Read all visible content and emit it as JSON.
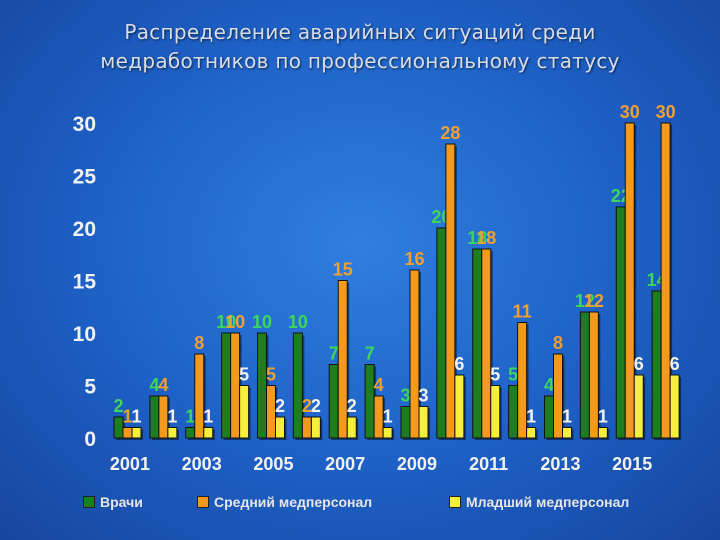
{
  "title_lines": [
    "Распределение аварийных ситуаций среди",
    "медработников по профессиональному статусу"
  ],
  "colors": {
    "background": "#1f63c6",
    "doctors": "#1e7d1e",
    "nurses": "#f39a1c",
    "juniors": "#f5ee3a",
    "label_doctors": "#3dd65a",
    "label_nurses": "#f0a030",
    "label_juniors": "#f2f2f2"
  },
  "chart_data": {
    "type": "bar",
    "title": "Распределение аварийных ситуаций среди медработников по профессиональному статусу",
    "categories": [
      "2001",
      "2002",
      "2003",
      "2004",
      "2005",
      "2006",
      "2007",
      "2008",
      "2009",
      "2010",
      "2011",
      "2012",
      "2013",
      "2014",
      "2015",
      "2016"
    ],
    "x_tick_labels": [
      "2001",
      "",
      "2003",
      "",
      "2005",
      "",
      "2007",
      "",
      "2009",
      "",
      "2011",
      "",
      "2013",
      "",
      "2015",
      ""
    ],
    "series": [
      {
        "name": "Врачи",
        "values": [
          2,
          4,
          1,
          10,
          10,
          10,
          7,
          7,
          3,
          20,
          18,
          5,
          4,
          12,
          22,
          14
        ]
      },
      {
        "name": "Средний медперсонал",
        "values": [
          1,
          4,
          8,
          10,
          5,
          2,
          15,
          4,
          16,
          28,
          18,
          11,
          8,
          12,
          30,
          30
        ]
      },
      {
        "name": "Младший медперсонал",
        "values": [
          1,
          1,
          1,
          5,
          2,
          2,
          2,
          1,
          3,
          6,
          5,
          1,
          1,
          1,
          6,
          6
        ]
      }
    ],
    "ylim": [
      0,
      30
    ],
    "yticks": [
      "0",
      "5",
      "10",
      "15",
      "20",
      "25",
      "30"
    ],
    "grid": false,
    "legend": "bottom",
    "xlabel": "",
    "ylabel": ""
  },
  "legend": [
    {
      "label": "Врачи"
    },
    {
      "label": "Средний медперсонал"
    },
    {
      "label": "Младший медперсонал"
    }
  ]
}
